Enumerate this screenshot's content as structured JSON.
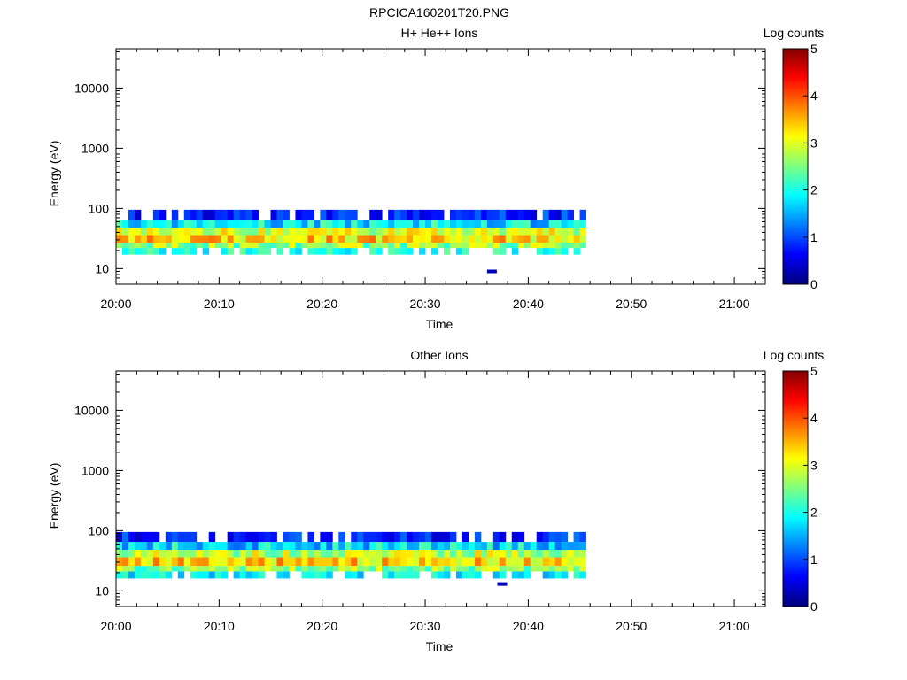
{
  "figure": {
    "title": "RPCICA160201T20.PNG"
  },
  "chart_data": [
    {
      "type": "heatmap",
      "title": "H+ He++ Ions",
      "xlabel": "Time",
      "ylabel": "Energy (eV)",
      "x_ticks": [
        "20:00",
        "20:10",
        "20:20",
        "20:30",
        "20:40",
        "20:50",
        "21:00"
      ],
      "x_range": [
        "20:00",
        "21:03"
      ],
      "y_scale": "log",
      "y_ticks": [
        10,
        100,
        1000,
        10000
      ],
      "y_range": [
        5.5,
        45000
      ],
      "data_time_range": [
        "20:00",
        "20:45"
      ],
      "colorbar": {
        "label": "Log counts",
        "ticks": [
          0,
          1,
          2,
          3,
          4,
          5
        ],
        "range": [
          0,
          5
        ],
        "colormap": "jet"
      },
      "bands": [
        {
          "energy_range_eV": [
            17,
            22
          ],
          "log_counts": 1.8
        },
        {
          "energy_range_eV": [
            22,
            27
          ],
          "log_counts": 2.6
        },
        {
          "energy_range_eV": [
            27,
            36
          ],
          "log_counts": 3.3
        },
        {
          "energy_range_eV": [
            36,
            48
          ],
          "log_counts": 2.9
        },
        {
          "energy_range_eV": [
            48,
            65
          ],
          "log_counts": 1.8
        },
        {
          "energy_range_eV": [
            65,
            95
          ],
          "log_counts": 0.6
        }
      ],
      "isolated_point": {
        "time": "20:36",
        "energy_eV": 9,
        "log_counts": 0.3
      }
    },
    {
      "type": "heatmap",
      "title": "Other Ions",
      "xlabel": "Time",
      "ylabel": "Energy (eV)",
      "x_ticks": [
        "20:00",
        "20:10",
        "20:20",
        "20:30",
        "20:40",
        "20:50",
        "21:00"
      ],
      "x_range": [
        "20:00",
        "21:03"
      ],
      "y_scale": "log",
      "y_ticks": [
        10,
        100,
        1000,
        10000
      ],
      "y_range": [
        5.5,
        45000
      ],
      "data_time_range": [
        "20:00",
        "20:45"
      ],
      "colorbar": {
        "label": "Log counts",
        "ticks": [
          0,
          1,
          2,
          3,
          4,
          5
        ],
        "range": [
          0,
          5
        ],
        "colormap": "jet"
      },
      "bands": [
        {
          "energy_range_eV": [
            16,
            21
          ],
          "log_counts": 1.6
        },
        {
          "energy_range_eV": [
            21,
            26
          ],
          "log_counts": 2.5
        },
        {
          "energy_range_eV": [
            26,
            36
          ],
          "log_counts": 3.3
        },
        {
          "energy_range_eV": [
            36,
            48
          ],
          "log_counts": 2.8
        },
        {
          "energy_range_eV": [
            48,
            65
          ],
          "log_counts": 1.7
        },
        {
          "energy_range_eV": [
            65,
            95
          ],
          "log_counts": 0.6
        }
      ],
      "isolated_point": {
        "time": "20:37",
        "energy_eV": 13,
        "log_counts": 0.3
      }
    }
  ]
}
